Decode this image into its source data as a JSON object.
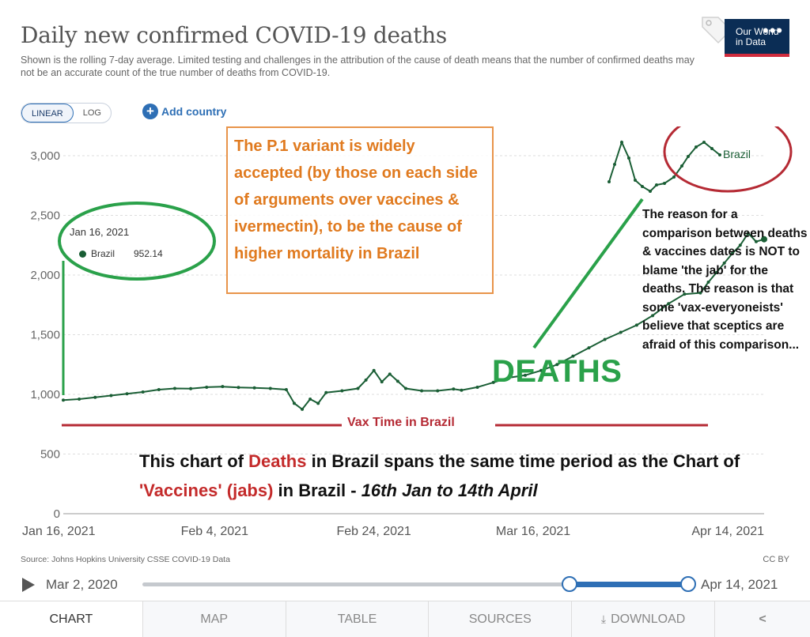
{
  "header": {
    "title": "Daily new confirmed COVID-19 deaths",
    "subtitle": "Shown is the rolling 7-day average. Limited testing and challenges in the attribution of the cause of death means that the number of confirmed deaths may not be an accurate count of the true number of deaths from COVID-19.",
    "logo_line1": "Our World",
    "logo_line2": "in Data"
  },
  "controls": {
    "linear_label": "LINEAR",
    "log_label": "LOG",
    "add_country_label": "Add country"
  },
  "tooltip": {
    "date": "Jan 16, 2021",
    "series": "Brazil",
    "value": "952.14"
  },
  "annotations": {
    "orange_box": "The P.1 variant is widely accepted (by those on each side of arguments over vaccines & ivermectin), to be the cause of higher mortality in Brazil",
    "deaths_label": "DEATHS",
    "right_note": "The reason for a comparison between deaths & vaccines dates is NOT to blame 'the jab' for the deaths. The reason is that some 'vax-everyoneists' believe that sceptics are afraid of this comparison...",
    "vax_label": "Vax Time in Brazil",
    "caption_part1": "This chart of ",
    "caption_deaths": "Deaths",
    "caption_part2": " in Brazil spans the same time period as the Chart of ",
    "caption_vaccines": "'Vaccines' (jabs)",
    "caption_part3": " in Brazil - ",
    "caption_dates": "16th Jan to 14th April",
    "colors": {
      "orange": "#e07a1f",
      "green": "#2aa14a",
      "red": "#c42b2b"
    }
  },
  "footer": {
    "source": "Source: Johns Hopkins University CSSE COVID-19 Data",
    "license": "CC BY",
    "timeline_start": "Mar 2, 2020",
    "timeline_end": "Apr 14, 2021",
    "timeline_selection_start_fraction": 0.782,
    "timeline_selection_end_fraction": 1.0
  },
  "tabs": [
    {
      "label": "CHART",
      "active": true
    },
    {
      "label": "MAP",
      "active": false
    },
    {
      "label": "TABLE",
      "active": false
    },
    {
      "label": "SOURCES",
      "active": false
    },
    {
      "label": "DOWNLOAD",
      "active": false,
      "icon": "download-icon"
    },
    {
      "label": "",
      "active": false,
      "icon": "share-icon"
    }
  ],
  "chart_data": {
    "type": "line",
    "title": "Daily new confirmed COVID-19 deaths",
    "xlabel": "",
    "ylabel": "",
    "ylim": [
      0,
      3000
    ],
    "yticks": [
      0,
      500,
      1000,
      1500,
      2000,
      2500,
      3000
    ],
    "ytick_labels": [
      "0",
      "500",
      "1,000",
      "1,500",
      "2,000",
      "2,500",
      "3,000"
    ],
    "xlim": [
      "2021-01-16",
      "2021-04-14"
    ],
    "xtick_labels": [
      {
        "date": "2021-01-16",
        "label": "Jan 16, 2021"
      },
      {
        "date": "2021-02-04",
        "label": "Feb 4, 2021"
      },
      {
        "date": "2021-02-24",
        "label": "Feb 24, 2021"
      },
      {
        "date": "2021-03-16",
        "label": "Mar 16, 2021"
      },
      {
        "date": "2021-04-14",
        "label": "Apr 14, 2021"
      }
    ],
    "grid": "horizontal dashed",
    "series": [
      {
        "name": "Brazil",
        "color": "#1a5e35",
        "points": [
          [
            "2021-01-16",
            952
          ],
          [
            "2021-01-18",
            960
          ],
          [
            "2021-01-20",
            975
          ],
          [
            "2021-01-22",
            990
          ],
          [
            "2021-01-24",
            1005
          ],
          [
            "2021-01-26",
            1020
          ],
          [
            "2021-01-28",
            1040
          ],
          [
            "2021-01-30",
            1050
          ],
          [
            "2021-02-01",
            1048
          ],
          [
            "2021-02-03",
            1060
          ],
          [
            "2021-02-05",
            1065
          ],
          [
            "2021-02-07",
            1058
          ],
          [
            "2021-02-09",
            1055
          ],
          [
            "2021-02-11",
            1050
          ],
          [
            "2021-02-13",
            1040
          ],
          [
            "2021-02-14",
            925
          ],
          [
            "2021-02-15",
            875
          ],
          [
            "2021-02-16",
            960
          ],
          [
            "2021-02-17",
            925
          ],
          [
            "2021-02-18",
            1015
          ],
          [
            "2021-02-20",
            1030
          ],
          [
            "2021-02-22",
            1050
          ],
          [
            "2021-02-23",
            1120
          ],
          [
            "2021-02-24",
            1200
          ],
          [
            "2021-02-25",
            1105
          ],
          [
            "2021-02-26",
            1170
          ],
          [
            "2021-02-27",
            1110
          ],
          [
            "2021-02-28",
            1050
          ],
          [
            "2021-03-02",
            1030
          ],
          [
            "2021-03-04",
            1030
          ],
          [
            "2021-03-06",
            1045
          ],
          [
            "2021-03-07",
            1035
          ],
          [
            "2021-03-09",
            1060
          ],
          [
            "2021-03-11",
            1100
          ],
          [
            "2021-03-13",
            1140
          ],
          [
            "2021-03-15",
            1160
          ],
          [
            "2021-03-17",
            1200
          ],
          [
            "2021-03-19",
            1250
          ],
          [
            "2021-03-21",
            1320
          ],
          [
            "2021-03-23",
            1390
          ],
          [
            "2021-03-25",
            1460
          ],
          [
            "2021-03-27",
            1520
          ],
          [
            "2021-03-29",
            1580
          ],
          [
            "2021-03-31",
            1660
          ],
          [
            "2021-04-02",
            1760
          ],
          [
            "2021-04-04",
            1840
          ],
          [
            "2021-04-06",
            1850
          ],
          [
            "2021-04-07",
            1940
          ],
          [
            "2021-04-08",
            2020
          ],
          [
            "2021-04-09",
            2100
          ],
          [
            "2021-04-10",
            2180
          ],
          [
            "2021-04-11",
            2250
          ],
          [
            "2021-04-12",
            2350
          ],
          [
            "2021-04-13",
            2280
          ],
          [
            "2021-04-14",
            2300
          ]
        ]
      }
    ],
    "series_end_label": "Brazil"
  }
}
